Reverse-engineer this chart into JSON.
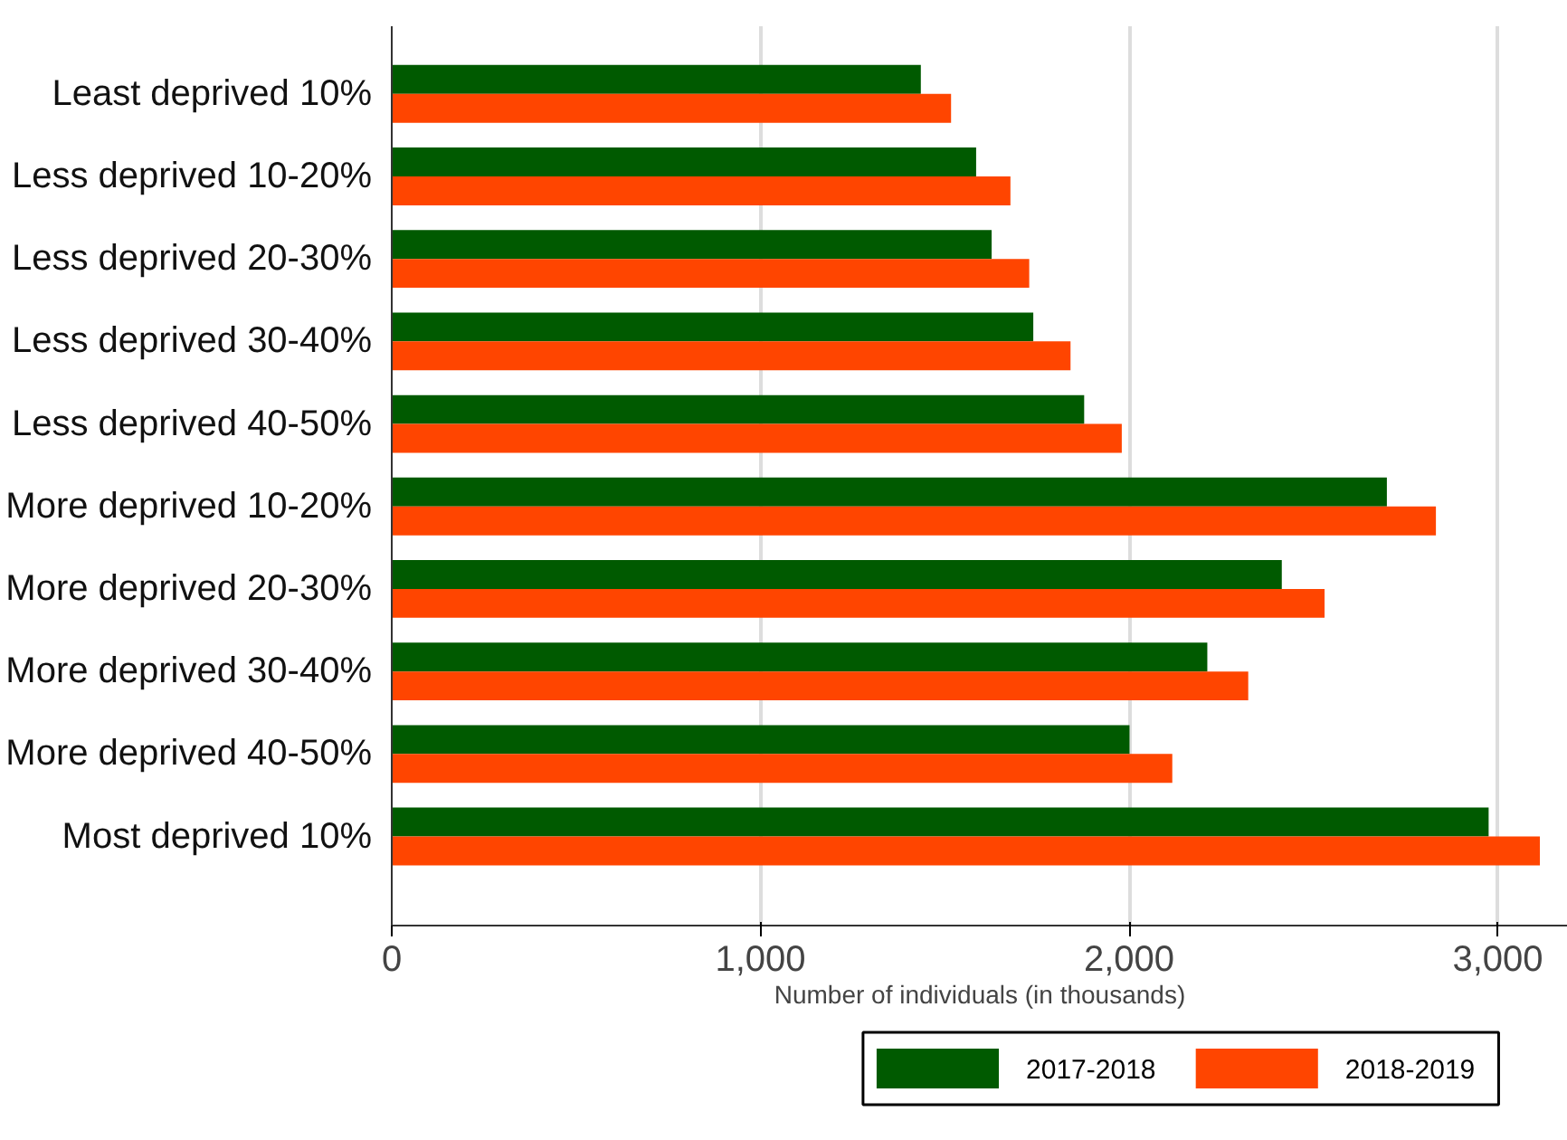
{
  "chart_data": {
    "type": "bar",
    "orientation": "horizontal",
    "xlabel": "Number of individuals (in thousands)",
    "categories": [
      "Least deprived 10%",
      "Less deprived 10-20%",
      "Less deprived 20-30%",
      "Less deprived 30-40%",
      "Less deprived 40-50%",
      "More deprived 10-20%",
      "More deprived 20-30%",
      "More deprived 30-40%",
      "More deprived 40-50%",
      "Most deprived 10%"
    ],
    "series": [
      {
        "name": "2017-2018",
        "color": "#005a00",
        "values": [
          1435,
          1585,
          1627,
          1740,
          1878,
          2699,
          2414,
          2212,
          2001,
          2975
        ]
      },
      {
        "name": "2018-2019",
        "color": "#ff4500",
        "values": [
          1517,
          1678,
          1729,
          1841,
          1980,
          2832,
          2530,
          2323,
          2117,
          3114
        ]
      }
    ],
    "xlim": [
      0,
      3190
    ],
    "xticks": [
      0,
      {
        "value": 1000,
        "label": "1,000"
      },
      {
        "value": 2000,
        "label": "2,000"
      },
      {
        "value": 3000,
        "label": "3,000"
      }
    ],
    "grid": "x",
    "legend": "bottom"
  }
}
